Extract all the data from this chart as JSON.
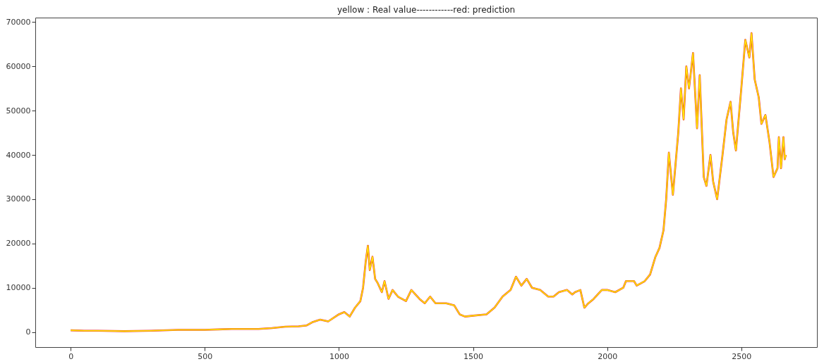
{
  "chart_data": {
    "type": "line",
    "title": "yellow : Real value------------red: prediction",
    "x": [
      0,
      50,
      100,
      200,
      300,
      400,
      500,
      550,
      600,
      700,
      750,
      800,
      850,
      880,
      900,
      930,
      960,
      1000,
      1020,
      1040,
      1060,
      1080,
      1090,
      1100,
      1108,
      1115,
      1125,
      1135,
      1145,
      1160,
      1170,
      1185,
      1200,
      1220,
      1250,
      1270,
      1300,
      1320,
      1340,
      1360,
      1400,
      1430,
      1450,
      1470,
      1500,
      1550,
      1580,
      1610,
      1640,
      1660,
      1680,
      1700,
      1720,
      1750,
      1780,
      1800,
      1820,
      1850,
      1870,
      1880,
      1900,
      1915,
      1930,
      1950,
      1980,
      2000,
      2030,
      2060,
      2070,
      2100,
      2110,
      2140,
      2160,
      2180,
      2195,
      2210,
      2220,
      2230,
      2245,
      2265,
      2275,
      2285,
      2295,
      2305,
      2320,
      2335,
      2345,
      2360,
      2370,
      2385,
      2395,
      2410,
      2430,
      2445,
      2460,
      2470,
      2480,
      2500,
      2515,
      2530,
      2538,
      2550,
      2565,
      2575,
      2590,
      2605,
      2620,
      2635,
      2640,
      2648,
      2657,
      2662,
      2666
    ],
    "series": [
      {
        "color": "#e8302a",
        "values": [
          400,
          300,
          300,
          200,
          300,
          500,
          500,
          600,
          700,
          700,
          900,
          1200,
          1300,
          1500,
          2200,
          2800,
          2400,
          4000,
          4500,
          3500,
          5500,
          7000,
          10000,
          16000,
          19500,
          14000,
          17000,
          12000,
          11000,
          9000,
          11500,
          7500,
          9500,
          8000,
          7000,
          9500,
          7500,
          6500,
          8000,
          6500,
          6500,
          6000,
          4000,
          3500,
          3700,
          4000,
          5500,
          8000,
          9500,
          12500,
          10500,
          12000,
          10000,
          9500,
          8000,
          8000,
          9000,
          9500,
          8500,
          9000,
          9500,
          5500,
          6500,
          7500,
          9500,
          9500,
          9000,
          10000,
          11500,
          11500,
          10500,
          11500,
          13000,
          17000,
          19000,
          23000,
          30000,
          40500,
          31000,
          45000,
          55000,
          48000,
          60000,
          55000,
          63000,
          46000,
          58000,
          35000,
          33000,
          40000,
          34000,
          30000,
          40000,
          48000,
          52000,
          45000,
          41000,
          55000,
          66000,
          62000,
          67500,
          57000,
          53000,
          47000,
          49000,
          43000,
          35000,
          37000,
          44000,
          37000,
          44000,
          39000,
          40000
        ]
      },
      {
        "color": "#ffe800",
        "values": [
          400,
          300,
          300,
          200,
          300,
          500,
          500,
          600,
          700,
          700,
          900,
          1200,
          1300,
          1500,
          2200,
          2800,
          2400,
          4000,
          4500,
          3500,
          5500,
          7000,
          10000,
          16000,
          19500,
          14000,
          17000,
          12000,
          11000,
          9000,
          11500,
          7500,
          9500,
          8000,
          7000,
          9500,
          7500,
          6500,
          8000,
          6500,
          6500,
          6000,
          4000,
          3500,
          3700,
          4000,
          5500,
          8000,
          9500,
          12500,
          10500,
          12000,
          10000,
          9500,
          8000,
          8000,
          9000,
          9500,
          8500,
          9000,
          9500,
          5500,
          6500,
          7500,
          9500,
          9500,
          9000,
          10000,
          11500,
          11500,
          10500,
          11500,
          13000,
          17000,
          19000,
          23000,
          30000,
          40500,
          31000,
          45000,
          55000,
          48000,
          60000,
          55000,
          63000,
          46000,
          58000,
          35000,
          33000,
          40000,
          34000,
          30000,
          40000,
          48000,
          52000,
          45000,
          41000,
          55000,
          66000,
          62000,
          67500,
          57000,
          53000,
          47000,
          49000,
          43000,
          35000,
          37000,
          44000,
          37000,
          44000,
          39000,
          40000
        ]
      }
    ],
    "xlim": [
      -132,
      2782
    ],
    "ylim": [
      -3400,
      71000
    ],
    "xticks": [
      0,
      500,
      1000,
      1500,
      2000,
      2500
    ],
    "yticks": [
      0,
      10000,
      20000,
      30000,
      40000,
      50000,
      60000,
      70000
    ],
    "grid": false
  }
}
